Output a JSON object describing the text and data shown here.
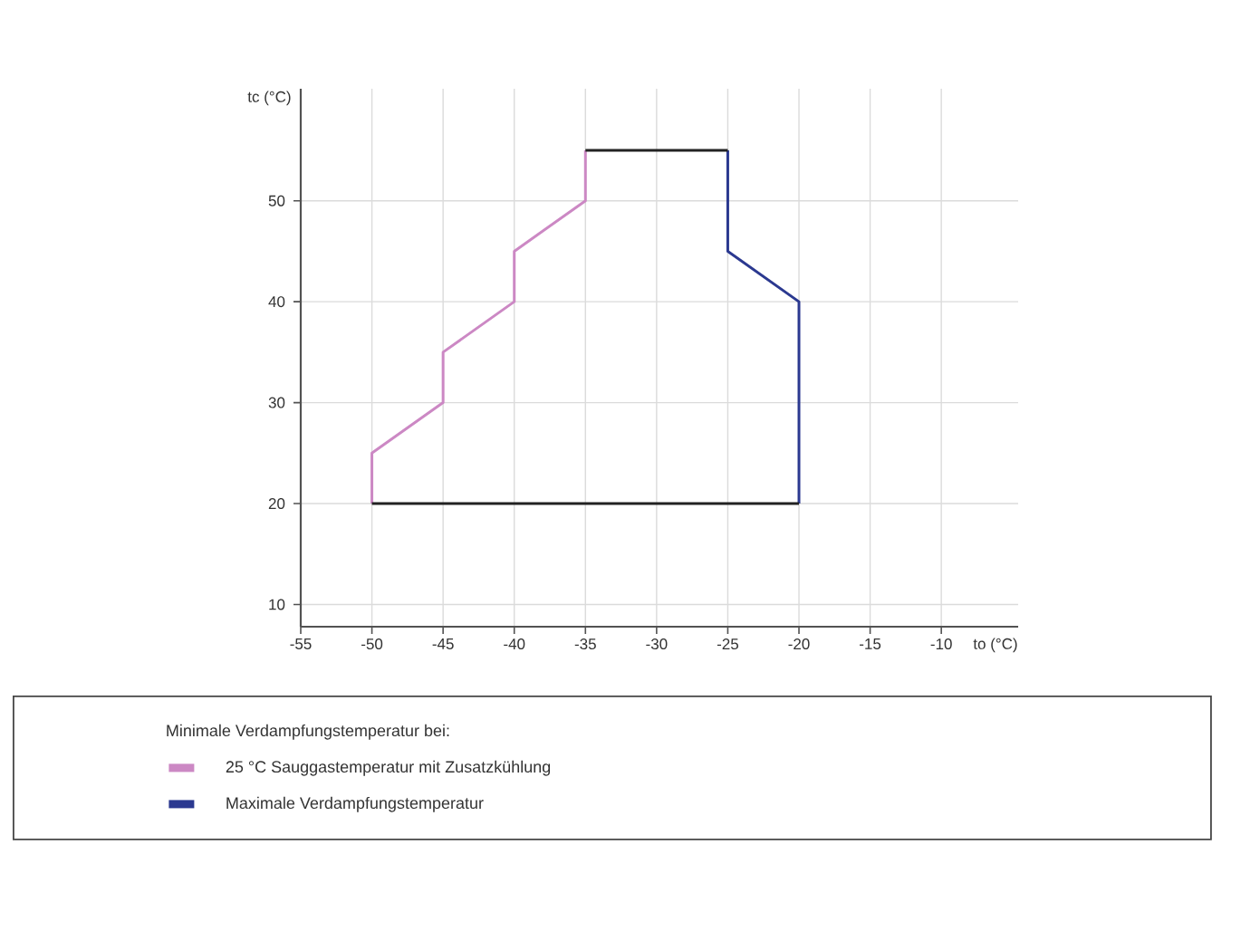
{
  "chart_data": {
    "type": "line",
    "xlabel": "to (°C)",
    "ylabel": "tc (°C)",
    "legend_title": "Minimale Verdampfungstemperatur bei:",
    "xlim": [
      -55,
      -4.6
    ],
    "ylim": [
      7.8,
      61.1
    ],
    "xticks": [
      -55,
      -50,
      -45,
      -40,
      -35,
      -30,
      -25,
      -20,
      -15,
      -10
    ],
    "yticks": [
      10,
      20,
      30,
      40,
      50
    ],
    "grid": true,
    "legend": "bottom",
    "marker": "none",
    "line_style": "solid",
    "series": [
      {
        "name": "25 °C Sauggastemperatur mit Zusatzkühlung",
        "color": "#cc88c4",
        "x": [
          -50,
          -50,
          -45,
          -45,
          -40,
          -40,
          -35,
          -35
        ],
        "values": [
          20,
          25,
          30,
          35,
          40,
          45,
          50,
          55
        ]
      },
      {
        "name": "Maximale Verdampfungstemperatur",
        "color": "#2b3990",
        "x": [
          -25,
          -25,
          -20,
          -20
        ],
        "values": [
          55,
          45,
          40,
          20
        ]
      },
      {
        "color": "#222222",
        "x": [
          -35,
          -25
        ],
        "values": [
          55,
          55
        ]
      },
      {
        "color": "#222222",
        "x": [
          -50,
          -20
        ],
        "values": [
          20,
          20
        ]
      }
    ]
  }
}
